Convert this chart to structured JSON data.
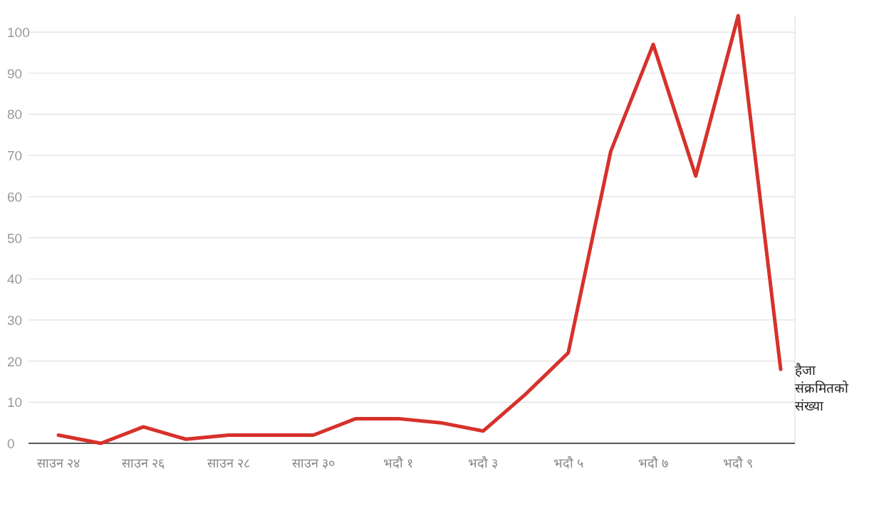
{
  "chart_data": {
    "type": "line",
    "categories": [
      "साउन २४",
      null,
      "साउन २६",
      null,
      "साउन २८",
      null,
      "साउन ३०",
      null,
      "भदौ १",
      null,
      "भदौ ३",
      null,
      "भदौ ५",
      null,
      "भदौ ७",
      null,
      "भदौ ९",
      null
    ],
    "series": [
      {
        "name": "हैजा संक्रमितको संख्या",
        "color": "#d7312b",
        "values": [
          2,
          0,
          4,
          1,
          2,
          2,
          2,
          6,
          6,
          5,
          3,
          12,
          22,
          71,
          97,
          65,
          104,
          18
        ]
      }
    ],
    "ylim": [
      0,
      104
    ],
    "yticks": [
      0,
      10,
      20,
      30,
      40,
      50,
      60,
      70,
      80,
      90,
      100
    ],
    "grid": "y"
  }
}
